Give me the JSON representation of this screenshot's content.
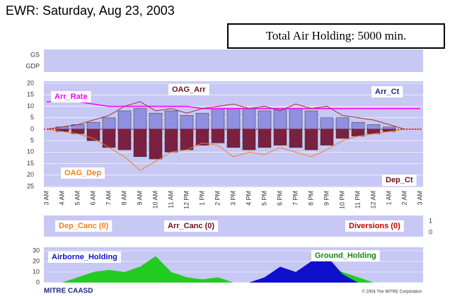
{
  "title": "EWR: Saturday, Aug 23, 2003",
  "total_holding": "Total Air Holding: 5000 min.",
  "program_panel": {
    "labels": [
      "GS",
      "GDP"
    ]
  },
  "cancel_panel": {
    "labels": [
      "Dep_Canc (0)",
      "Arr_Canc (0)",
      "Diversions (0)"
    ],
    "yticks": [
      1,
      0
    ]
  },
  "footer": {
    "logo": "MITRE CAASD",
    "copyright": "© 2004 The MITRE Corporation"
  },
  "chart_data": [
    {
      "type": "bar",
      "categories": [
        "3 AM",
        "4 AM",
        "5 AM",
        "6 AM",
        "7 AM",
        "8 AM",
        "9 AM",
        "10 AM",
        "11 AM",
        "12 PM",
        "1 PM",
        "2 PM",
        "3 PM",
        "4 PM",
        "5 PM",
        "6 PM",
        "7 PM",
        "8 PM",
        "9 PM",
        "10 PM",
        "11 PM",
        "12 AM",
        "1 AM",
        "2 AM",
        "3 AM"
      ],
      "series": [
        {
          "name": "Arr_Ct",
          "type": "bar",
          "color": "#9090e0",
          "values": [
            0,
            1,
            2,
            3,
            5,
            8,
            9,
            7,
            8,
            6,
            7,
            9,
            9,
            9,
            8,
            9,
            9,
            8,
            5,
            5,
            3,
            2,
            1,
            0,
            0
          ]
        },
        {
          "name": "Dep_Ct",
          "type": "bar",
          "color": "#7a2040",
          "values": [
            0,
            -1,
            -2,
            -5,
            -8,
            -9,
            -12,
            -13,
            -10,
            -9,
            -7,
            -6,
            -8,
            -9,
            -8,
            -7,
            -8,
            -9,
            -7,
            -4,
            -3,
            -2,
            -1,
            0,
            0
          ]
        },
        {
          "name": "Arr_Rate",
          "type": "line",
          "color": "#ff00ff",
          "values": [
            12,
            12,
            12,
            11,
            10,
            10,
            10,
            10,
            10,
            10,
            9,
            9,
            9,
            9,
            9,
            9,
            9,
            9,
            9,
            9,
            9,
            9,
            9,
            9,
            9
          ]
        },
        {
          "name": "OAG_Arr",
          "type": "line",
          "color": "#a03030",
          "values": [
            0,
            1,
            2,
            4,
            6,
            10,
            12,
            8,
            9,
            7,
            9,
            10,
            11,
            9,
            10,
            8,
            11,
            9,
            10,
            6,
            5,
            4,
            2,
            0,
            0
          ]
        },
        {
          "name": "OAG_Dep",
          "type": "line",
          "color": "#f08020",
          "values": [
            0,
            -1,
            -2,
            -4,
            -8,
            -12,
            -18,
            -14,
            -10,
            -9,
            -6,
            -7,
            -12,
            -10,
            -11,
            -8,
            -10,
            -12,
            -9,
            -5,
            -3,
            -2,
            -1,
            0,
            0
          ]
        }
      ],
      "ylim": [
        -25,
        20
      ],
      "yticks": [
        20,
        15,
        10,
        5,
        0,
        {
          "value": -5,
          "label": "5"
        },
        {
          "value": -10,
          "label": "10"
        },
        {
          "value": -15,
          "label": "15"
        },
        {
          "value": -20,
          "label": "20"
        },
        {
          "value": -25,
          "label": "25"
        }
      ],
      "grid": true
    },
    {
      "type": "area",
      "series": [
        {
          "name": "Ground_Holding",
          "color": "#22cc22",
          "values": [
            0,
            0,
            5,
            10,
            12,
            10,
            15,
            25,
            10,
            5,
            3,
            5,
            0,
            0,
            0,
            0,
            5,
            5,
            15,
            10,
            5,
            0,
            0,
            0,
            0
          ]
        },
        {
          "name": "Airborne_Holding",
          "color": "#1010cc",
          "values": [
            0,
            0,
            0,
            0,
            0,
            0,
            0,
            0,
            0,
            0,
            0,
            0,
            0,
            0,
            5,
            15,
            10,
            20,
            25,
            8,
            0,
            0,
            0,
            0,
            0
          ]
        }
      ],
      "ylim": [
        0,
        30
      ],
      "yticks": [
        0,
        10,
        20,
        30
      ]
    }
  ]
}
